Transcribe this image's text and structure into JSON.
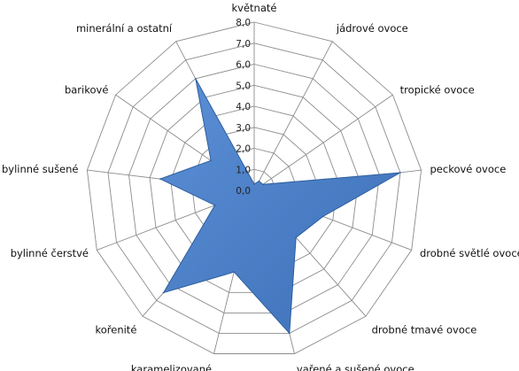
{
  "chart_data": {
    "type": "radar",
    "categories": [
      "květnaté",
      "jádrové ovoce",
      "tropické ovoce",
      "peckové ovoce",
      "drobné světlé ovoce",
      "drobné tmavé ovoce",
      "vařené a sušené ovoce",
      "karamelizované",
      "kořenité",
      "bylinné čerstvé",
      "bylinné sušené",
      "barikové",
      "minerální a ostatní"
    ],
    "series": [
      {
        "values": [
          0.3,
          0.5,
          0.5,
          7.0,
          3.5,
          3.0,
          7.0,
          4.0,
          6.5,
          2.0,
          4.5,
          2.5,
          6.0
        ],
        "color": "#4F81BD"
      }
    ],
    "ylim": [
      0,
      8
    ],
    "ticks": [
      "0,0",
      "1,0",
      "2,0",
      "3,0",
      "4,0",
      "5,0",
      "6,0",
      "7,0",
      "8,0"
    ],
    "grid": true,
    "gridColor": "#8c8c8c",
    "fillColor": "#4F81BD",
    "strokeColor": "#2E5F9E"
  }
}
